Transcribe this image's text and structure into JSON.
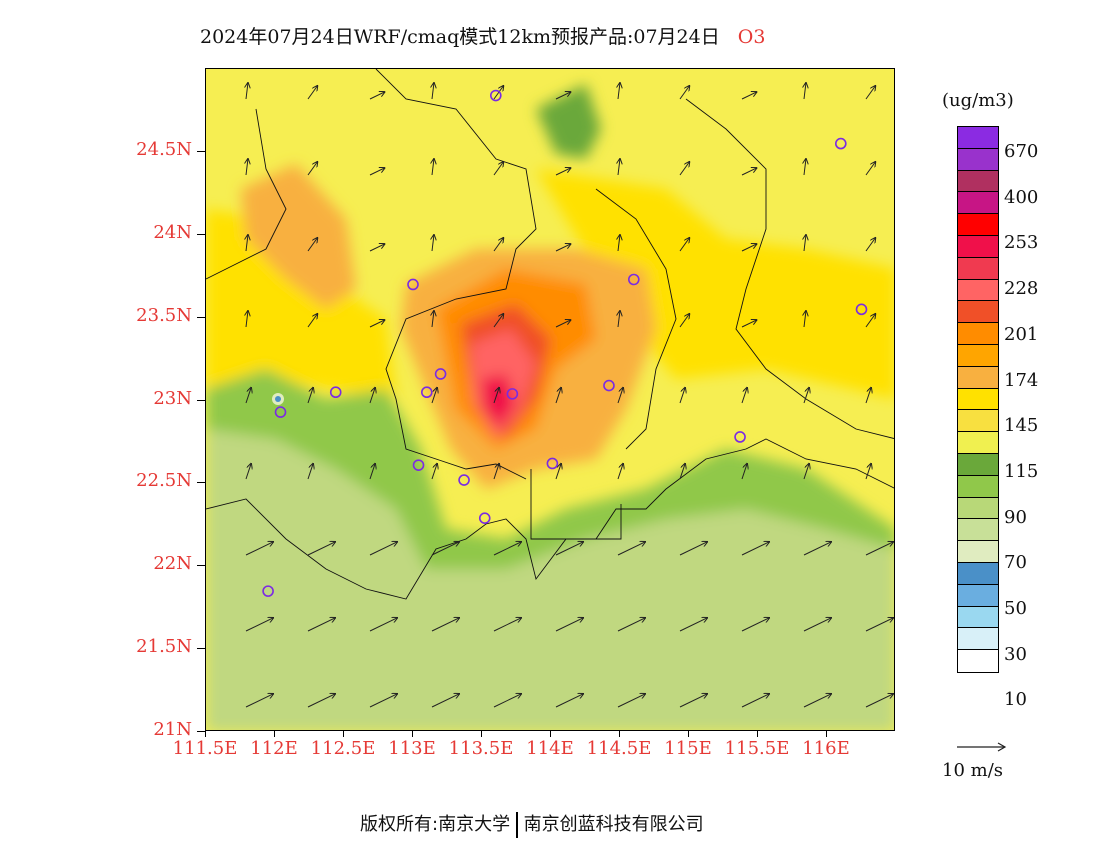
{
  "title": {
    "text": "2024年07月24日WRF/cmaq模式12km预报产品:07月24日",
    "species": "O3"
  },
  "map": {
    "lat_labels": [
      "24.5N",
      "24N",
      "23.5N",
      "23N",
      "22.5N",
      "22N",
      "21.5N",
      "21N"
    ],
    "lon_labels": [
      "111.5E",
      "112E",
      "112.5E",
      "113E",
      "113.5E",
      "114E",
      "114.5E",
      "115E",
      "115.5E",
      "116E"
    ],
    "lat_range": [
      21.0,
      25.0
    ],
    "lon_range": [
      111.5,
      116.5
    ],
    "station_markers": [
      {
        "name": "station",
        "lon": 113.6,
        "lat": 24.84
      },
      {
        "name": "station",
        "lon": 116.1,
        "lat": 24.55
      },
      {
        "name": "station",
        "lon": 113.0,
        "lat": 23.7
      },
      {
        "name": "station",
        "lon": 114.6,
        "lat": 23.73
      },
      {
        "name": "station",
        "lon": 116.25,
        "lat": 23.55
      },
      {
        "name": "station",
        "lon": 113.2,
        "lat": 23.16
      },
      {
        "name": "station",
        "lon": 112.44,
        "lat": 23.05
      },
      {
        "name": "station",
        "lon": 113.1,
        "lat": 23.05
      },
      {
        "name": "station",
        "lon": 113.72,
        "lat": 23.04
      },
      {
        "name": "station",
        "lon": 114.42,
        "lat": 23.09
      },
      {
        "name": "station",
        "lon": 112.04,
        "lat": 22.93
      },
      {
        "name": "station",
        "lon": 113.04,
        "lat": 22.61
      },
      {
        "name": "station",
        "lon": 113.37,
        "lat": 22.52
      },
      {
        "name": "station",
        "lon": 114.01,
        "lat": 22.62
      },
      {
        "name": "station",
        "lon": 115.37,
        "lat": 22.78
      },
      {
        "name": "station",
        "lon": 113.52,
        "lat": 22.29
      },
      {
        "name": "station",
        "lon": 111.95,
        "lat": 21.85
      }
    ]
  },
  "legend": {
    "unit": "(ug/m3)",
    "colors": [
      "#8b2be2",
      "#9932cc",
      "#b03060",
      "#c71585",
      "#ff0000",
      "#f0104a",
      "#f03a50",
      "#ff6464",
      "#f05028",
      "#ff8c00",
      "#ffa500",
      "#f8b040",
      "#ffe100",
      "#f8e040",
      "#f0f050",
      "#6aa83a",
      "#90c84a",
      "#b8d878",
      "#c8e098",
      "#e0ecc0",
      "#4a90c8",
      "#6aaee0",
      "#9ad8f0",
      "#d8f0f8",
      "#ffffff"
    ],
    "labels": [
      "670",
      "400",
      "253",
      "228",
      "201",
      "174",
      "145",
      "115",
      "90",
      "70",
      "50",
      "30",
      "10"
    ]
  },
  "wind_reference": {
    "label": "10 m/s"
  },
  "footer": {
    "left": "版权所有:南京大学",
    "right": "南京创蓝科技有限公司"
  }
}
